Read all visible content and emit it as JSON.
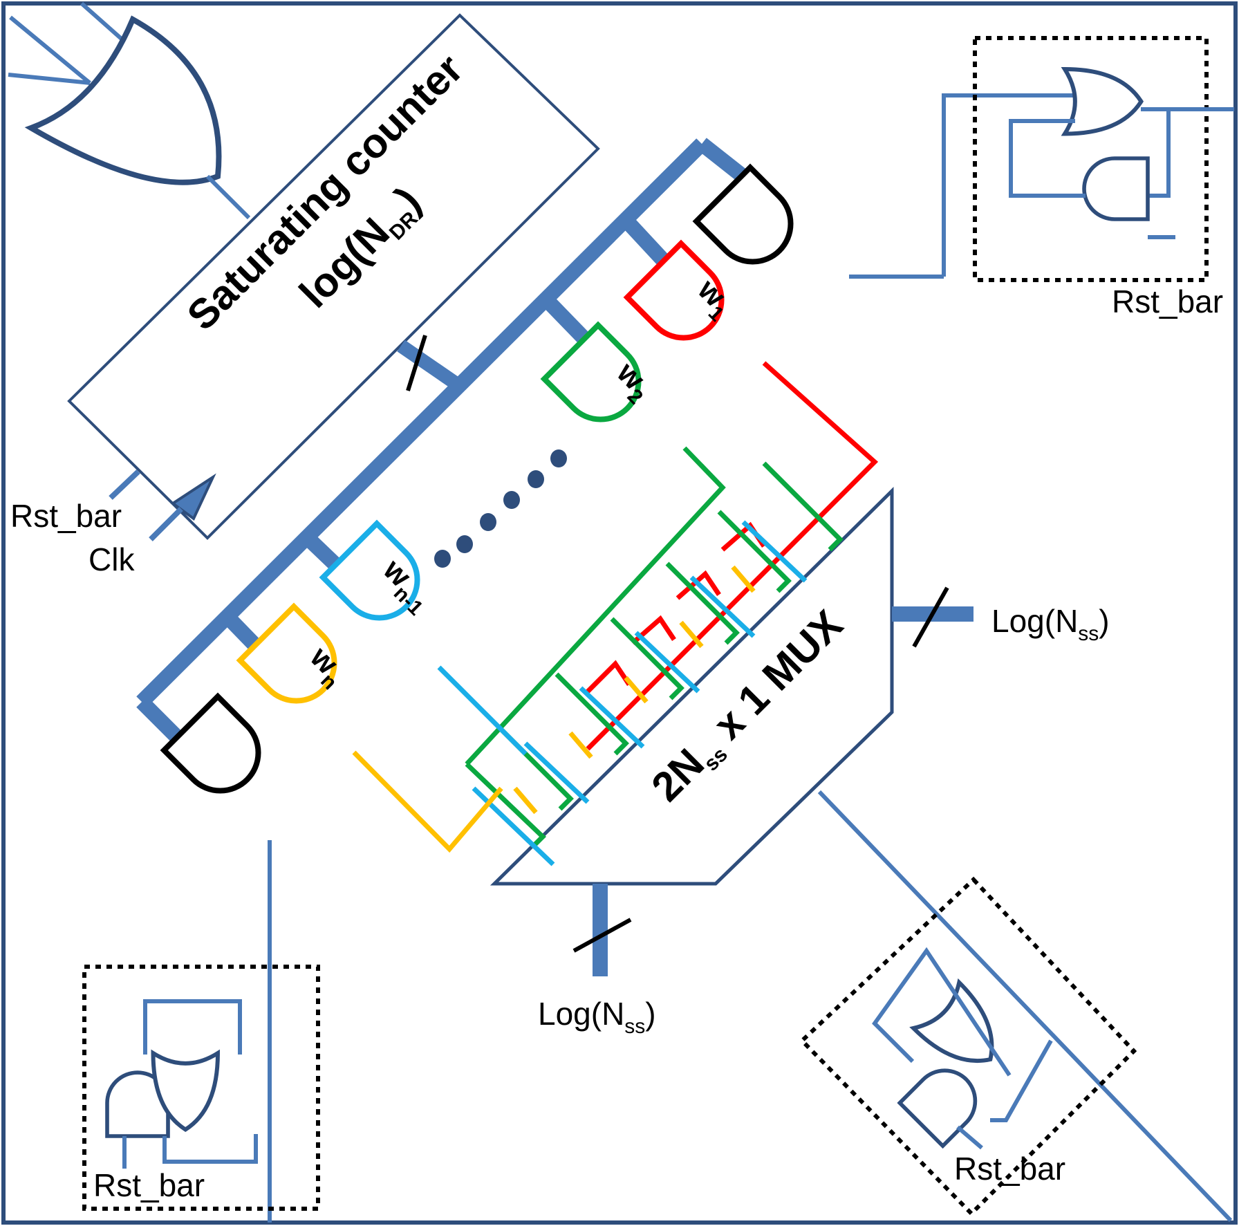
{
  "counter": {
    "line1": "Saturating counter",
    "line2_prefix": "log(N",
    "line2_sub": "DR",
    "line2_suffix": ")"
  },
  "mux": {
    "prefix": "2N",
    "sub": "ss",
    "suffix": " x 1 MUX"
  },
  "labels": {
    "rst_bar": "Rst_bar",
    "clk": "Clk",
    "log_prefix": "Log(N",
    "log_sub": "ss",
    "log_suffix": ")"
  },
  "gates": {
    "w1": {
      "base": "w",
      "sub": "1"
    },
    "w2": {
      "base": "w",
      "sub": "2"
    },
    "wn1": {
      "base": "w",
      "sub": "n-1"
    },
    "wn": {
      "base": "w",
      "sub": "n"
    }
  },
  "colors": {
    "wire_blue": "#4a7ab8",
    "dark_blue": "#2e4d7b",
    "red": "#ff0000",
    "green": "#0aa840",
    "cyan": "#1aaee8",
    "yellow": "#ffc000",
    "black": "#000000"
  }
}
